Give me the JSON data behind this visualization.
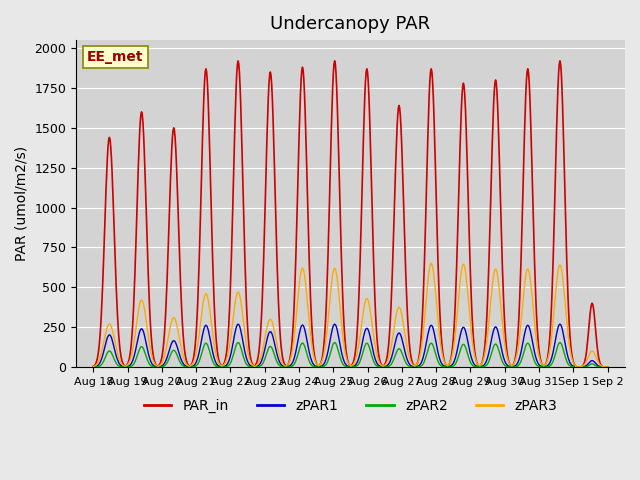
{
  "title": "Undercanopy PAR",
  "ylabel": "PAR (umol/m2/s)",
  "background_color": "#e8e8e8",
  "plot_bg_color": "#d3d3d3",
  "site_label": "EE_met",
  "ylim": [
    0,
    2050
  ],
  "series": {
    "PAR_in": {
      "color": "#cc0000",
      "linewidth": 1.2
    },
    "zPAR1": {
      "color": "#0000cc",
      "linewidth": 1.0
    },
    "zPAR2": {
      "color": "#00aa00",
      "linewidth": 1.0
    },
    "zPAR3": {
      "color": "#ffaa00",
      "linewidth": 1.0
    }
  },
  "xtick_labels": [
    "Aug 18",
    "Aug 19",
    "Aug 20",
    "Aug 21",
    "Aug 22",
    "Aug 23",
    "Aug 24",
    "Aug 25",
    "Aug 26",
    "Aug 27",
    "Aug 28",
    "Aug 29",
    "Aug 30",
    "Aug 31",
    "Sep 1",
    "Sep 2"
  ],
  "legend_labels": [
    "PAR_in",
    "zPAR1",
    "zPAR2",
    "zPAR3"
  ],
  "legend_colors": [
    "#cc0000",
    "#0000cc",
    "#00aa00",
    "#ffaa00"
  ],
  "day_params": [
    [
      1440,
      270,
      0.14,
      0.07,
      7
    ],
    [
      1600,
      420,
      0.15,
      0.08,
      7
    ],
    [
      1500,
      310,
      0.11,
      0.07,
      7
    ],
    [
      1870,
      460,
      0.14,
      0.08,
      7
    ],
    [
      1920,
      470,
      0.14,
      0.08,
      7
    ],
    [
      1850,
      300,
      0.12,
      0.07,
      7
    ],
    [
      1880,
      620,
      0.14,
      0.08,
      7
    ],
    [
      1920,
      620,
      0.14,
      0.08,
      7
    ],
    [
      1870,
      430,
      0.13,
      0.08,
      7
    ],
    [
      1640,
      375,
      0.13,
      0.07,
      7
    ],
    [
      1870,
      650,
      0.14,
      0.08,
      7
    ],
    [
      1780,
      645,
      0.14,
      0.08,
      7
    ],
    [
      1800,
      615,
      0.14,
      0.08,
      7
    ],
    [
      1870,
      615,
      0.14,
      0.08,
      7
    ],
    [
      1920,
      640,
      0.14,
      0.08,
      7
    ],
    [
      400,
      100,
      0.1,
      0.05,
      5
    ]
  ]
}
